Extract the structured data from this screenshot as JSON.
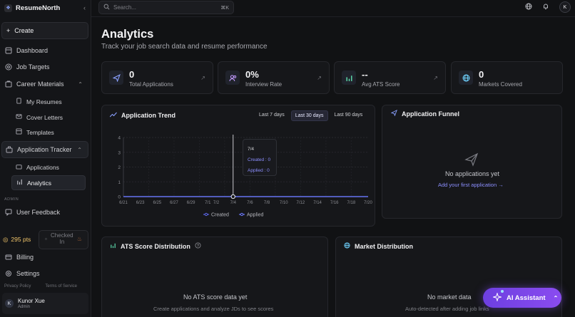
{
  "app": {
    "name": "ResumeNorth",
    "logo_glyph": "❖"
  },
  "colors": {
    "accent": "#8c8fff",
    "points": "#f0c46a",
    "ai_button": "#7b44e8",
    "line": "#6c79ff"
  },
  "sidebar": {
    "create_label": "Create",
    "items": [
      {
        "label": "Dashboard",
        "icon": "home-icon"
      },
      {
        "label": "Job Targets",
        "icon": "target-icon"
      },
      {
        "label": "Career Materials",
        "icon": "folder-icon"
      },
      {
        "label": "Application Tracker",
        "icon": "briefcase-icon"
      },
      {
        "label": "User Feedback",
        "icon": "message-icon"
      },
      {
        "label": "Billing",
        "icon": "card-icon"
      },
      {
        "label": "Settings",
        "icon": "gear-icon"
      }
    ],
    "career_sub": [
      "My Resumes",
      "Cover Letters",
      "Templates"
    ],
    "tracker_sub": [
      "Applications",
      "Analytics"
    ],
    "section_admin": "ADMIN",
    "points": "295 pts",
    "checked_in": "Checked In",
    "footer": {
      "privacy": "Privacy Policy",
      "terms": "Terms of Service"
    },
    "user": {
      "initial": "K",
      "name": "Kunor Xue",
      "role": "Admin"
    }
  },
  "topbar": {
    "search_placeholder": "Search...",
    "shortcut": "⌘K",
    "user_initial": "K"
  },
  "page": {
    "title": "Analytics",
    "subtitle": "Track your job search data and resume performance"
  },
  "stats": [
    {
      "value": "0",
      "label": "Total Applications",
      "icon": "send-icon",
      "color": "#8aa0ff"
    },
    {
      "value": "0%",
      "label": "Interview Rate",
      "icon": "users-icon",
      "color": "#c39bff"
    },
    {
      "value": "--",
      "label": "Avg ATS Score",
      "icon": "bar-chart-icon",
      "color": "#5fe0b0"
    },
    {
      "value": "0",
      "label": "Markets Covered",
      "icon": "globe-icon",
      "color": "#6fd3ff"
    }
  ],
  "trend": {
    "title": "Application Trend",
    "ranges": [
      "Last 7 days",
      "Last 30 days",
      "Last 90 days"
    ],
    "active_range": "Last 30 days",
    "tooltip": {
      "date": "7/4",
      "created": "Created : 0",
      "applied": "Applied : 0"
    }
  },
  "funnel": {
    "title": "Application Funnel",
    "empty": "No applications yet",
    "link": "Add your first application →"
  },
  "ats": {
    "title": "ATS Score Distribution",
    "empty": "No ATS score data yet",
    "sub": "Create applications and analyze JDs to see scores"
  },
  "market": {
    "title": "Market Distribution",
    "empty": "No market data",
    "sub": "Auto-detected after adding job links"
  },
  "ai_button": "AI Assistant",
  "chart_data": {
    "type": "line",
    "x": [
      "6/21",
      "6/22",
      "6/23",
      "6/24",
      "6/25",
      "6/26",
      "6/27",
      "6/28",
      "6/29",
      "6/30",
      "7/1",
      "7/2",
      "7/3",
      "7/4",
      "7/5",
      "7/6",
      "7/7",
      "7/8",
      "7/9",
      "7/10",
      "7/11",
      "7/12",
      "7/13",
      "7/14",
      "7/15",
      "7/16",
      "7/17",
      "7/18",
      "7/19",
      "7/20"
    ],
    "x_ticks": [
      "6/21",
      "6/23",
      "6/25",
      "6/27",
      "6/29",
      "7/1",
      "7/2",
      "7/4",
      "7/6",
      "7/8",
      "7/10",
      "7/12",
      "7/14",
      "7/16",
      "7/18",
      "7/20"
    ],
    "series": [
      {
        "name": "Created",
        "values": [
          0,
          0,
          0,
          0,
          0,
          0,
          0,
          0,
          0,
          0,
          0,
          0,
          0,
          0,
          0,
          0,
          0,
          0,
          0,
          0,
          0,
          0,
          0,
          0,
          0,
          0,
          0,
          0,
          0,
          0
        ]
      },
      {
        "name": "Applied",
        "values": [
          0,
          0,
          0,
          0,
          0,
          0,
          0,
          0,
          0,
          0,
          0,
          0,
          0,
          0,
          0,
          0,
          0,
          0,
          0,
          0,
          0,
          0,
          0,
          0,
          0,
          0,
          0,
          0,
          0,
          0
        ]
      }
    ],
    "ylim": [
      0,
      4
    ],
    "y_ticks": [
      0,
      1,
      2,
      3,
      4
    ],
    "highlight_x": "7/4",
    "legend": "bottom-center",
    "grid": true
  }
}
